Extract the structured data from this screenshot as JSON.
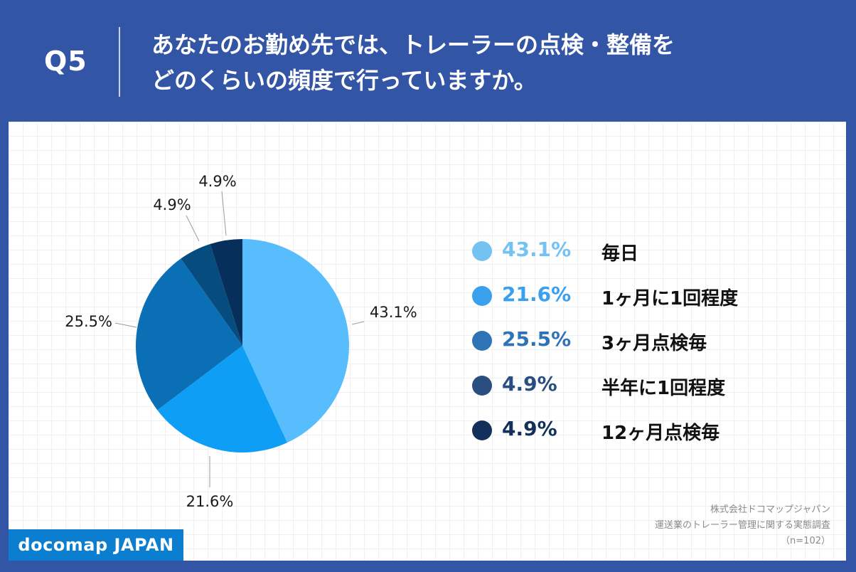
{
  "header": {
    "question_number": "Q5",
    "question_line1": "あなたのお勤め先では、トレーラーの点検・整備を",
    "question_line2": "どのくらいの頻度で行っていますか。"
  },
  "chart_data": {
    "type": "pie",
    "title": "",
    "slices": [
      {
        "label": "毎日",
        "value": 43.1,
        "display": "43.1%",
        "color": "#58bdfd"
      },
      {
        "label": "1ヶ月に1回程度",
        "value": 21.6,
        "display": "21.6%",
        "color": "#0e9ef6"
      },
      {
        "label": "3ヶ月点検毎",
        "value": 25.5,
        "display": "25.5%",
        "color": "#0b6fb6"
      },
      {
        "label": "半年に1回程度",
        "value": 4.9,
        "display": "4.9%",
        "color": "#074c7e"
      },
      {
        "label": "12ヶ月点検毎",
        "value": 4.9,
        "display": "4.9%",
        "color": "#062f5b"
      }
    ],
    "legend_position": "right"
  },
  "legend": {
    "items": [
      {
        "percent": "43.1%",
        "label": "毎日",
        "color": "#74c2f2"
      },
      {
        "percent": "21.6%",
        "label": "1ヶ月に1回程度",
        "color": "#3aa0ee"
      },
      {
        "percent": "25.5%",
        "label": "3ヶ月点検毎",
        "color": "#2f73b7"
      },
      {
        "percent": "4.9%",
        "label": "半年に1回程度",
        "color": "#284f7f"
      },
      {
        "percent": "4.9%",
        "label": "12ヶ月点検毎",
        "color": "#13305a"
      }
    ]
  },
  "source": {
    "line1": "株式会社ドコマップジャパン",
    "line2": "運送業のトレーラー管理に関する実態調査",
    "line3": "（n=102）"
  },
  "brand": {
    "name": "docomap JAPAN"
  },
  "colors": {
    "background": "#3355a6",
    "panel": "#ffffff",
    "brand": "#0b7ed0"
  }
}
